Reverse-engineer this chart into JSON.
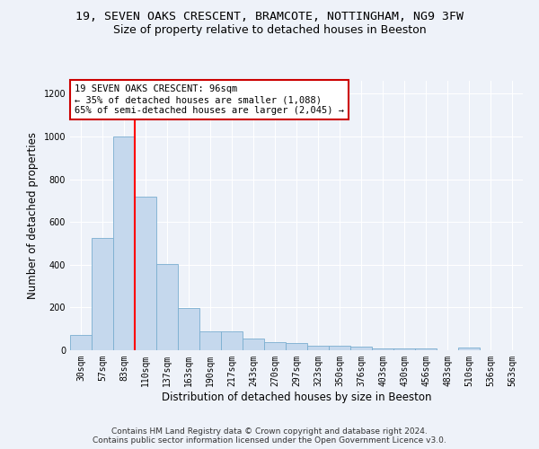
{
  "title": "19, SEVEN OAKS CRESCENT, BRAMCOTE, NOTTINGHAM, NG9 3FW",
  "subtitle": "Size of property relative to detached houses in Beeston",
  "xlabel": "Distribution of detached houses by size in Beeston",
  "ylabel": "Number of detached properties",
  "footer_line1": "Contains HM Land Registry data © Crown copyright and database right 2024.",
  "footer_line2": "Contains public sector information licensed under the Open Government Licence v3.0.",
  "categories": [
    "30sqm",
    "57sqm",
    "83sqm",
    "110sqm",
    "137sqm",
    "163sqm",
    "190sqm",
    "217sqm",
    "243sqm",
    "270sqm",
    "297sqm",
    "323sqm",
    "350sqm",
    "376sqm",
    "403sqm",
    "430sqm",
    "456sqm",
    "483sqm",
    "510sqm",
    "536sqm",
    "563sqm"
  ],
  "values": [
    70,
    525,
    1000,
    720,
    405,
    197,
    90,
    88,
    55,
    38,
    33,
    20,
    20,
    15,
    7,
    7,
    7,
    1,
    13,
    1,
    1
  ],
  "bar_color": "#c5d8ed",
  "bar_edge_color": "#7aaed0",
  "red_line_x": 2.5,
  "annotation_text": "19 SEVEN OAKS CRESCENT: 96sqm\n← 35% of detached houses are smaller (1,088)\n65% of semi-detached houses are larger (2,045) →",
  "annotation_box_color": "#ffffff",
  "annotation_box_edge": "#cc0000",
  "ylim": [
    0,
    1260
  ],
  "yticks": [
    0,
    200,
    400,
    600,
    800,
    1000,
    1200
  ],
  "bg_color": "#eef2f9",
  "grid_color": "#ffffff",
  "title_fontsize": 9.5,
  "subtitle_fontsize": 9,
  "axis_label_fontsize": 8.5,
  "tick_fontsize": 7,
  "footer_fontsize": 6.5,
  "annotation_fontsize": 7.5
}
